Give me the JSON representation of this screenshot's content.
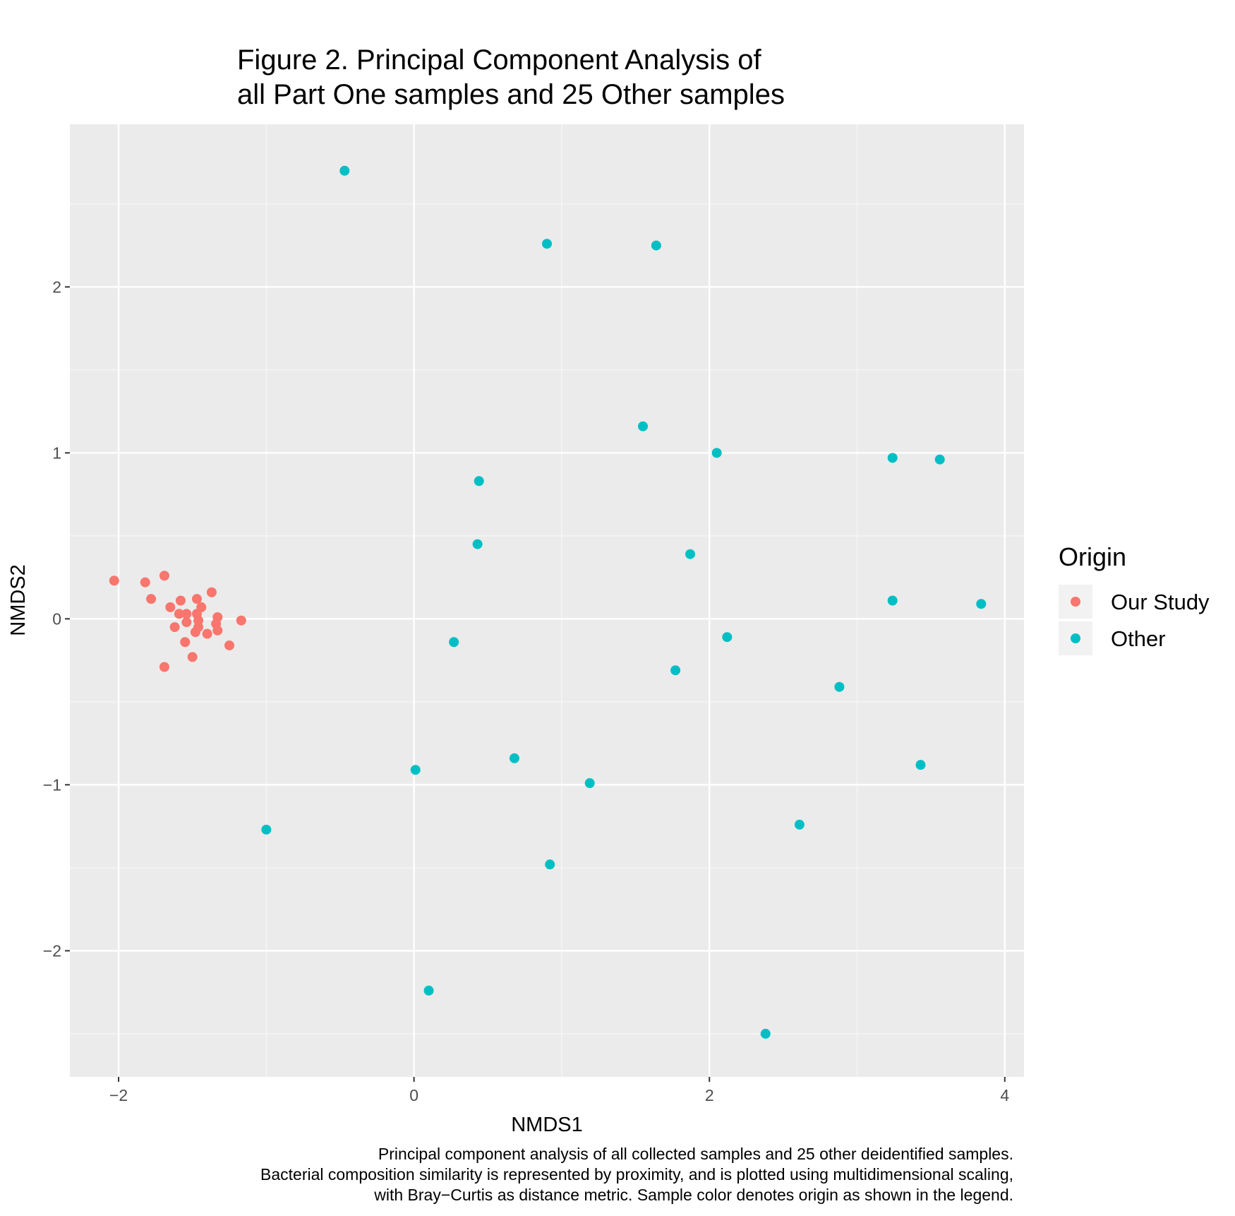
{
  "chart_data": {
    "type": "scatter",
    "title": [
      "Figure 2. Principal Component Analysis of",
      "all Part One samples and 25 Other samples"
    ],
    "xlabel": "NMDS1",
    "ylabel": "NMDS2",
    "xlim": [
      -2.33,
      4.13
    ],
    "ylim": [
      -2.76,
      2.98
    ],
    "xticks": [
      -2,
      0,
      2,
      4
    ],
    "xtick_labels": [
      "−2",
      "0",
      "2",
      "4"
    ],
    "yticks": [
      -2,
      -1,
      0,
      1,
      2
    ],
    "ytick_labels": [
      "−2",
      "−1",
      "0",
      "1",
      "2"
    ],
    "grid": true,
    "background": "#ebebeb",
    "legend": {
      "title": "Origin",
      "position": "right",
      "entries": [
        {
          "label": "Our Study",
          "color": "#f8766d"
        },
        {
          "label": "Other",
          "color": "#00bfc4"
        }
      ]
    },
    "caption": [
      "Principal component analysis of all collected samples and 25 other deidentified samples.",
      "Bacterial composition similarity is represented by proximity, and is plotted using multidimensional scaling,",
      "with Bray−Curtis as distance metric. Sample color denotes origin as shown in the legend."
    ],
    "series": [
      {
        "name": "Our Study",
        "color": "#f8766d",
        "points": [
          [
            -2.03,
            0.23
          ],
          [
            -1.82,
            0.22
          ],
          [
            -1.78,
            0.12
          ],
          [
            -1.69,
            0.26
          ],
          [
            -1.65,
            0.07
          ],
          [
            -1.62,
            -0.05
          ],
          [
            -1.59,
            0.03
          ],
          [
            -1.58,
            0.11
          ],
          [
            -1.55,
            -0.14
          ],
          [
            -1.54,
            0.03
          ],
          [
            -1.54,
            -0.02
          ],
          [
            -1.5,
            -0.23
          ],
          [
            -1.48,
            -0.08
          ],
          [
            -1.47,
            0.03
          ],
          [
            -1.47,
            0.12
          ],
          [
            -1.46,
            -0.05
          ],
          [
            -1.46,
            -0.01
          ],
          [
            -1.44,
            0.07
          ],
          [
            -1.4,
            -0.09
          ],
          [
            -1.37,
            0.16
          ],
          [
            -1.34,
            -0.03
          ],
          [
            -1.33,
            0.01
          ],
          [
            -1.33,
            -0.07
          ],
          [
            -1.25,
            -0.16
          ],
          [
            -1.17,
            -0.01
          ],
          [
            -1.69,
            -0.29
          ]
        ]
      },
      {
        "name": "Other",
        "color": "#00bfc4",
        "points": [
          [
            -0.47,
            2.7
          ],
          [
            0.9,
            2.26
          ],
          [
            1.64,
            2.25
          ],
          [
            1.55,
            1.16
          ],
          [
            2.05,
            1.0
          ],
          [
            3.24,
            0.97
          ],
          [
            3.56,
            0.96
          ],
          [
            0.44,
            0.83
          ],
          [
            0.43,
            0.45
          ],
          [
            1.87,
            0.39
          ],
          [
            3.24,
            0.11
          ],
          [
            3.84,
            0.09
          ],
          [
            0.27,
            -0.14
          ],
          [
            2.12,
            -0.11
          ],
          [
            1.77,
            -0.31
          ],
          [
            2.88,
            -0.41
          ],
          [
            0.01,
            -0.91
          ],
          [
            0.68,
            -0.84
          ],
          [
            1.19,
            -0.99
          ],
          [
            3.43,
            -0.88
          ],
          [
            -1.0,
            -1.27
          ],
          [
            2.61,
            -1.24
          ],
          [
            0.92,
            -1.48
          ],
          [
            0.1,
            -2.24
          ],
          [
            2.38,
            -2.5
          ]
        ]
      }
    ]
  }
}
